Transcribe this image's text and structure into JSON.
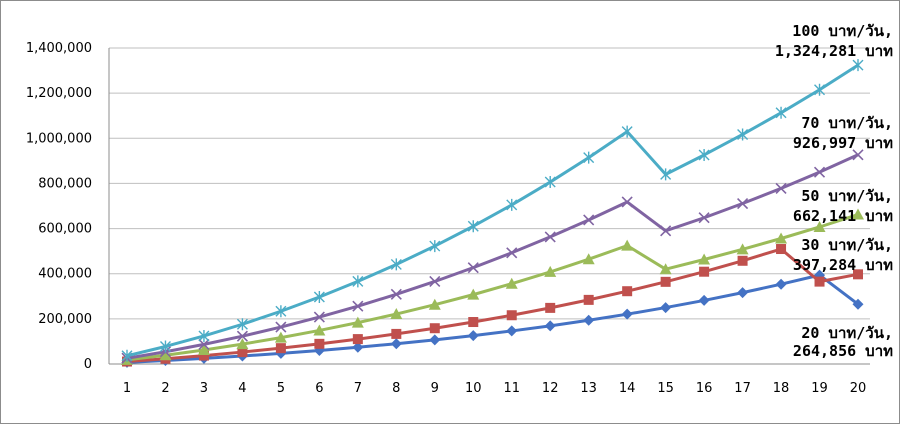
{
  "chart_data": {
    "type": "line",
    "title": "",
    "xlabel": "",
    "ylabel": "",
    "x": [
      1,
      2,
      3,
      4,
      5,
      6,
      7,
      8,
      9,
      10,
      11,
      12,
      13,
      14,
      15,
      16,
      17,
      18,
      19,
      20
    ],
    "ylim": [
      0,
      1400000
    ],
    "yticks": [
      0,
      200000,
      400000,
      600000,
      800000,
      1000000,
      1200000,
      1400000
    ],
    "ytick_labels": [
      "0",
      "200,000",
      "400,000",
      "600,000",
      "800,000",
      "1,000,000",
      "1,200,000",
      "1,400,000"
    ],
    "grid": "horizontal",
    "legend": "none",
    "series": [
      {
        "color": "#4472c4",
        "marker": "diamond",
        "values": [
          7300,
          15600,
          25000,
          35500,
          47100,
          60000,
          74200,
          89800,
          107000,
          125900,
          146500,
          169100,
          193800,
          220700,
          250000,
          281700,
          316200,
          353500,
          393800,
          264856
        ],
        "annotation": [
          "20 บาท/วัน,",
          "264,856 บาท"
        ]
      },
      {
        "color": "#c0504d",
        "marker": "square",
        "values": [
          10950,
          23300,
          37300,
          52900,
          70200,
          89300,
          110300,
          133300,
          158500,
          186000,
          216000,
          248600,
          284100,
          322500,
          364000,
          408900,
          457300,
          509400,
          365000,
          397284
        ],
        "annotation": [
          "30 บาท/วัน,",
          "397,284 บาท"
        ]
      },
      {
        "color": "#9bbb59",
        "marker": "triangle",
        "values": [
          18250,
          38800,
          62100,
          88100,
          116900,
          148600,
          183400,
          221300,
          262600,
          307400,
          355800,
          408000,
          464200,
          524400,
          420000,
          463000,
          508000,
          556000,
          607000,
          662141
        ],
        "annotation": [
          "50 บาท/วัน,",
          "662,141 บาท"
        ]
      },
      {
        "color": "#8064a2",
        "marker": "x",
        "values": [
          25550,
          54300,
          86900,
          123300,
          163600,
          207800,
          256100,
          308700,
          365600,
          426900,
          492700,
          563100,
          638100,
          717800,
          590000,
          648000,
          711000,
          778000,
          850000,
          926997
        ],
        "annotation": [
          "70 บาท/วัน,",
          "926,997 บาท"
        ]
      },
      {
        "color": "#4bacc6",
        "marker": "star",
        "values": [
          36500,
          77600,
          124100,
          176100,
          233700,
          296900,
          366000,
          441100,
          522500,
          610300,
          704800,
          806100,
          914400,
          1029700,
          840000,
          926000,
          1017000,
          1113000,
          1215000,
          1324281
        ],
        "annotation": [
          "100 บาท/วัน,",
          "1,324,281 บาท"
        ]
      }
    ]
  }
}
